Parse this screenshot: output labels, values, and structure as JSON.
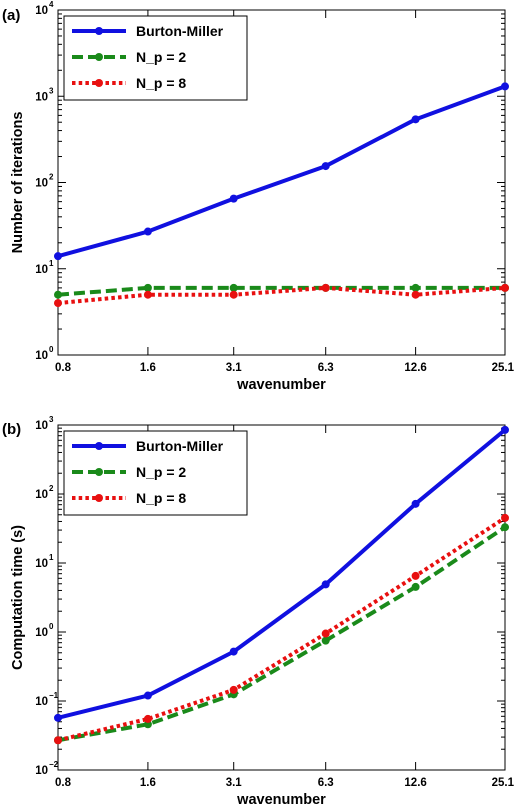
{
  "chart_data": [
    {
      "panel_label": "(a)",
      "type": "line",
      "x": [
        0.8,
        1.6,
        3.1,
        6.3,
        12.6,
        25.1
      ],
      "x_tick_labels": [
        "0.8",
        "1.6",
        "3.1",
        "6.3",
        "12.6",
        "25.1"
      ],
      "xscale": "log",
      "yscale": "log",
      "ylim": [
        1,
        10000
      ],
      "y_tick_exponents": [
        0,
        1,
        2,
        3,
        4
      ],
      "xlabel": "wavenumber",
      "ylabel": "Number of iterations",
      "legend_position": "top-left",
      "grid": false,
      "series": [
        {
          "name": "Burton-Miller",
          "color": "#1010e0",
          "style": "solid",
          "values": [
            14,
            27,
            65,
            155,
            540,
            1300
          ]
        },
        {
          "name": "N_p = 2",
          "color": "#1a8a1a",
          "style": "dashed",
          "values": [
            5,
            6,
            6,
            6,
            6,
            6
          ]
        },
        {
          "name": "N_p = 8",
          "color": "#e81010",
          "style": "dotted",
          "values": [
            4,
            5,
            5,
            6,
            5,
            6
          ]
        }
      ]
    },
    {
      "panel_label": "(b)",
      "type": "line",
      "x": [
        0.8,
        1.6,
        3.1,
        6.3,
        12.6,
        25.1
      ],
      "x_tick_labels": [
        "0.8",
        "1.6",
        "3.1",
        "6.3",
        "12.6",
        "25.1"
      ],
      "xscale": "log",
      "yscale": "log",
      "ylim": [
        0.01,
        1000
      ],
      "y_tick_exponents": [
        -2,
        -1,
        0,
        1,
        2,
        3
      ],
      "xlabel": "wavenumber",
      "ylabel": "Computation time (s)",
      "legend_position": "top-left",
      "grid": false,
      "series": [
        {
          "name": "Burton-Miller",
          "color": "#1010e0",
          "style": "solid",
          "values": [
            0.057,
            0.12,
            0.52,
            4.9,
            72,
            850
          ]
        },
        {
          "name": "N_p = 2",
          "color": "#1a8a1a",
          "style": "dashed",
          "values": [
            0.027,
            0.046,
            0.125,
            0.75,
            4.5,
            33
          ]
        },
        {
          "name": "N_p = 8",
          "color": "#e81010",
          "style": "dotted",
          "values": [
            0.027,
            0.055,
            0.145,
            0.95,
            6.5,
            45
          ]
        }
      ]
    }
  ]
}
